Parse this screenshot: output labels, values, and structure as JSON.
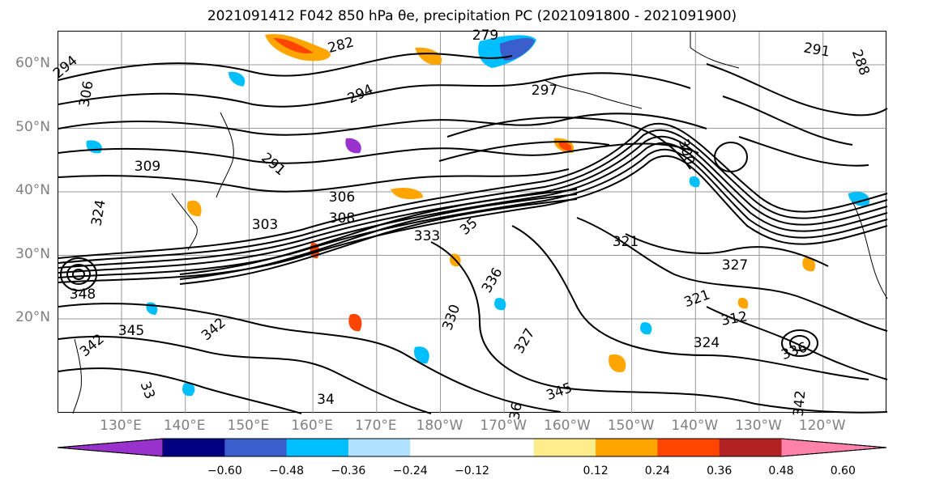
{
  "title": "2021091412 F042 850 hPa θe, precipitation PC (2021091800 - 2021091900)",
  "lat_labels": [
    {
      "text": "60°N",
      "lat": 60
    },
    {
      "text": "50°N",
      "lat": 50
    },
    {
      "text": "40°N",
      "lat": 40
    },
    {
      "text": "30°N",
      "lat": 30
    },
    {
      "text": "20°N",
      "lat": 20
    }
  ],
  "lon_labels": [
    "130°E",
    "140°E",
    "150°E",
    "160°E",
    "170°E",
    "180°W",
    "170°W",
    "160°W",
    "150°W",
    "140°W",
    "130°W",
    "120°W"
  ],
  "contour_labels": [
    "294",
    "306",
    "282",
    "279",
    "291",
    "288",
    "294",
    "297",
    "309",
    "291",
    "306",
    "324",
    "300",
    "303",
    "308",
    "333",
    "35",
    "321",
    "327",
    "321",
    "312",
    "336",
    "330",
    "342",
    "345",
    "342",
    "327",
    "324",
    "336",
    "342",
    "345",
    "34",
    "33",
    "36",
    "348"
  ],
  "colorbar": {
    "colors": [
      "#9932cc",
      "#000080",
      "#3a5fcd",
      "#00bfff",
      "#b0e2ff",
      "#ffffff",
      "#ffffff",
      "#ffec8b",
      "#ffa500",
      "#ff4500",
      "#b22222",
      "#ff82ab"
    ],
    "ticks": [
      "−0.60",
      "−0.48",
      "−0.36",
      "−0.24",
      "−0.12",
      "0.12",
      "0.24",
      "0.36",
      "0.48",
      "0.60"
    ],
    "extend": "both"
  }
}
